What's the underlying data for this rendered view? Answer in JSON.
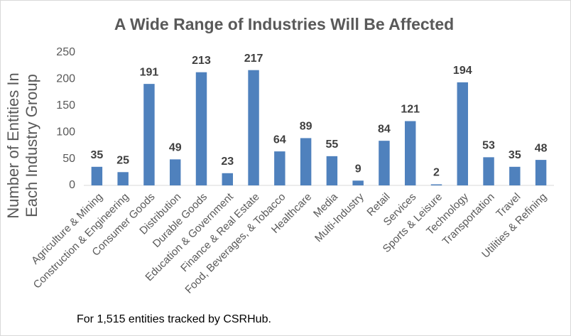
{
  "chart_data": {
    "type": "bar",
    "title": "A Wide Range of Industries Will Be Affected",
    "y_label": "Number of Entities In Each Industry Group",
    "annotation": "For 1,515 entities tracked by CSRHub.",
    "categories": [
      "Agriculture & Mining",
      "Construction & Engineering",
      "Consumer Goods",
      "Distribution",
      "Durable Goods",
      "Education & Government",
      "Finance & Real Estate",
      "Food, Beverages, & Tobacco",
      "Healthcare",
      "Media",
      "Multi-Industry",
      "Retail",
      "Services",
      "Sports & Leisure",
      "Technology",
      "Transportation",
      "Travel",
      "Utilities & Refining"
    ],
    "values": [
      35,
      25,
      191,
      49,
      213,
      23,
      217,
      64,
      89,
      55,
      9,
      84,
      121,
      2,
      194,
      53,
      35,
      48
    ],
    "color": "#4f81bd",
    "ylim": [
      0,
      250
    ],
    "yticks": [
      0,
      50,
      100,
      150,
      200,
      250
    ],
    "grid": false
  }
}
